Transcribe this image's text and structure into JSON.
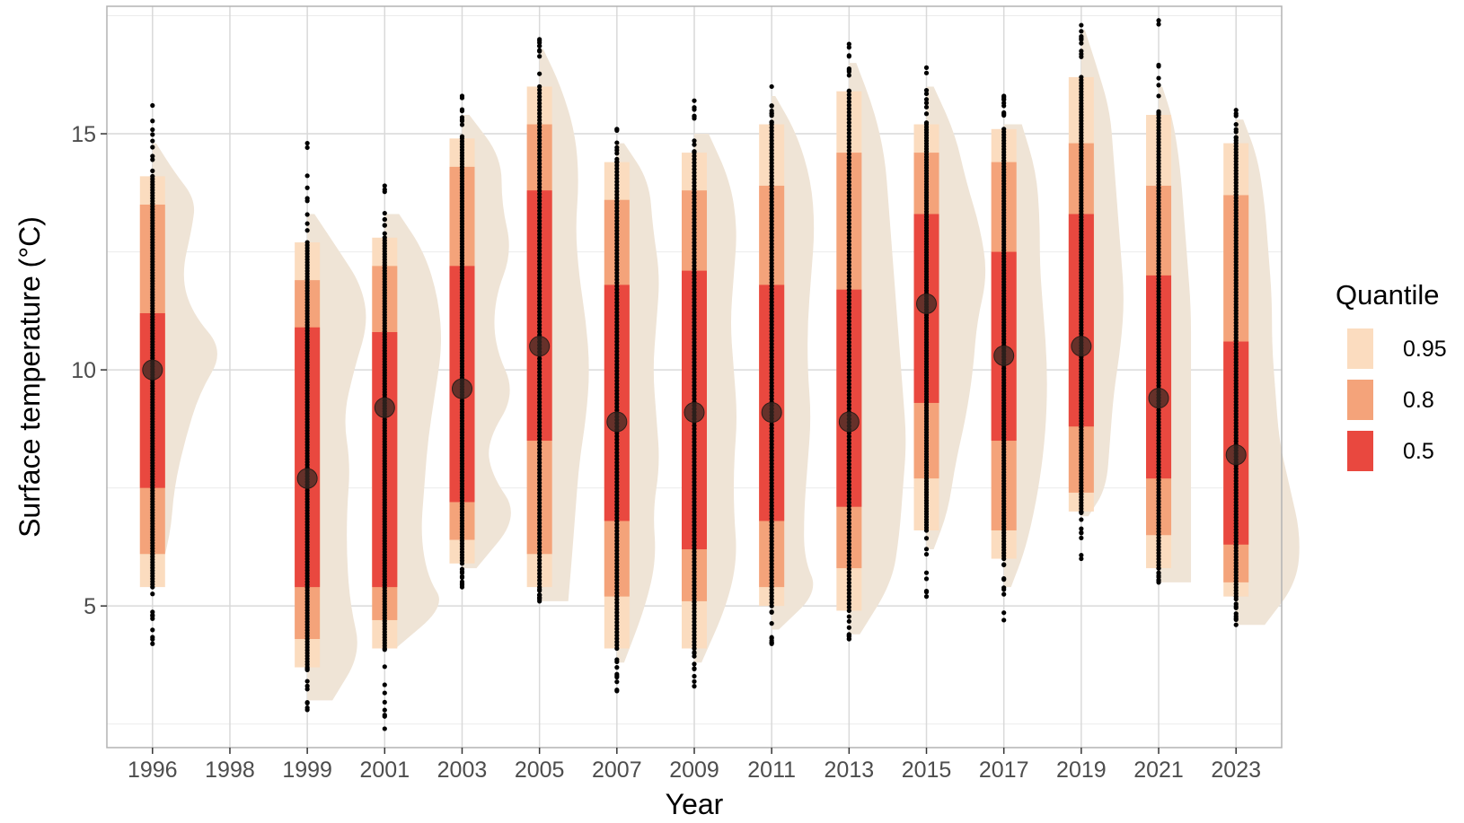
{
  "chart_data": {
    "type": "raincloud",
    "xlabel": "Year",
    "ylabel": "Surface temperature (°C)",
    "ylim": [
      2.0,
      17.7
    ],
    "y_ticks": [
      5,
      10,
      15
    ],
    "grid": true,
    "legend": {
      "title": "Quantile",
      "position": "right",
      "items": [
        {
          "label": "0.95",
          "color": "#fbdcbf"
        },
        {
          "label": "0.8",
          "color": "#f4a37a"
        },
        {
          "label": "0.5",
          "color": "#e9483f"
        }
      ]
    },
    "colors": {
      "density": "#efe4d6",
      "q95": "#fbdcbf",
      "q80": "#f4a37a",
      "q50": "#e9483f",
      "points": "#000000",
      "median": "#3a2a24"
    },
    "categories": [
      "1996",
      "1998",
      "1999",
      "2001",
      "2003",
      "2005",
      "2007",
      "2009",
      "2011",
      "2013",
      "2015",
      "2017",
      "2019",
      "2021",
      "2023"
    ],
    "series": [
      {
        "year": "1996",
        "median": 10.0,
        "q50": [
          7.5,
          11.2
        ],
        "q80": [
          6.1,
          13.5
        ],
        "q95": [
          5.4,
          14.1
        ],
        "min": 4.2,
        "max": 15.6,
        "density": [
          [
            5.4,
            0.05
          ],
          [
            6.5,
            0.25
          ],
          [
            7.5,
            0.3
          ],
          [
            8.5,
            0.45
          ],
          [
            9.5,
            0.65
          ],
          [
            10.4,
            1.0
          ],
          [
            11.2,
            0.55
          ],
          [
            12.0,
            0.4
          ],
          [
            13.0,
            0.55
          ],
          [
            13.6,
            0.6
          ],
          [
            14.2,
            0.3
          ],
          [
            14.8,
            0.05
          ]
        ]
      },
      {
        "year": "1998"
      },
      {
        "year": "1999",
        "median": 7.7,
        "q50": [
          5.4,
          10.9
        ],
        "q80": [
          4.3,
          11.9
        ],
        "q95": [
          3.7,
          12.7
        ],
        "min": 2.8,
        "max": 14.8,
        "density": [
          [
            3.0,
            0.35
          ],
          [
            4.0,
            0.75
          ],
          [
            5.0,
            0.6
          ],
          [
            6.0,
            0.55
          ],
          [
            7.0,
            0.55
          ],
          [
            8.0,
            0.6
          ],
          [
            9.0,
            0.5
          ],
          [
            10.0,
            0.65
          ],
          [
            11.0,
            0.85
          ],
          [
            11.8,
            0.75
          ],
          [
            12.5,
            0.45
          ],
          [
            13.3,
            0.1
          ]
        ]
      },
      {
        "year": "2001",
        "median": 9.2,
        "q50": [
          5.4,
          10.8
        ],
        "q80": [
          4.7,
          12.2
        ],
        "q95": [
          4.1,
          12.8
        ],
        "min": 2.4,
        "max": 13.9,
        "density": [
          [
            4.1,
            0.15
          ],
          [
            5.0,
            0.85
          ],
          [
            5.6,
            0.6
          ],
          [
            6.5,
            0.5
          ],
          [
            7.5,
            0.55
          ],
          [
            8.5,
            0.6
          ],
          [
            9.5,
            0.7
          ],
          [
            10.5,
            0.8
          ],
          [
            11.5,
            0.75
          ],
          [
            12.5,
            0.55
          ],
          [
            13.3,
            0.2
          ]
        ]
      },
      {
        "year": "2003",
        "median": 9.6,
        "q50": [
          7.2,
          12.2
        ],
        "q80": [
          6.4,
          14.3
        ],
        "q95": [
          5.9,
          14.9
        ],
        "min": 5.4,
        "max": 15.8,
        "density": [
          [
            5.8,
            0.2
          ],
          [
            6.9,
            0.8
          ],
          [
            7.8,
            0.4
          ],
          [
            8.5,
            0.35
          ],
          [
            9.5,
            0.75
          ],
          [
            10.5,
            0.45
          ],
          [
            11.5,
            0.45
          ],
          [
            12.5,
            0.7
          ],
          [
            13.5,
            0.55
          ],
          [
            14.5,
            0.55
          ],
          [
            15.4,
            0.1
          ]
        ]
      },
      {
        "year": "2005",
        "median": 10.5,
        "q50": [
          8.5,
          13.8
        ],
        "q80": [
          6.1,
          15.2
        ],
        "q95": [
          5.4,
          16.0
        ],
        "min": 5.1,
        "max": 17.0,
        "density": [
          [
            5.1,
            0.4
          ],
          [
            6.0,
            0.45
          ],
          [
            7.0,
            0.5
          ],
          [
            8.0,
            0.55
          ],
          [
            9.0,
            0.65
          ],
          [
            10.0,
            0.7
          ],
          [
            11.0,
            0.65
          ],
          [
            12.0,
            0.55
          ],
          [
            13.0,
            0.5
          ],
          [
            14.0,
            0.55
          ],
          [
            15.0,
            0.5
          ],
          [
            16.0,
            0.3
          ],
          [
            16.8,
            0.05
          ]
        ]
      },
      {
        "year": "2007",
        "median": 8.9,
        "q50": [
          6.8,
          11.8
        ],
        "q80": [
          5.2,
          13.6
        ],
        "q95": [
          4.1,
          14.4
        ],
        "min": 3.2,
        "max": 15.1,
        "density": [
          [
            3.8,
            0.1
          ],
          [
            5.0,
            0.4
          ],
          [
            6.0,
            0.55
          ],
          [
            7.0,
            0.5
          ],
          [
            8.0,
            0.6
          ],
          [
            9.0,
            0.55
          ],
          [
            10.0,
            0.5
          ],
          [
            11.0,
            0.55
          ],
          [
            12.0,
            0.6
          ],
          [
            13.0,
            0.5
          ],
          [
            14.0,
            0.45
          ],
          [
            14.8,
            0.1
          ]
        ]
      },
      {
        "year": "2009",
        "median": 9.1,
        "q50": [
          6.2,
          12.1
        ],
        "q80": [
          5.1,
          13.8
        ],
        "q95": [
          4.1,
          14.6
        ],
        "min": 3.3,
        "max": 15.7,
        "density": [
          [
            3.8,
            0.1
          ],
          [
            5.0,
            0.45
          ],
          [
            6.0,
            0.6
          ],
          [
            7.0,
            0.55
          ],
          [
            8.0,
            0.55
          ],
          [
            9.0,
            0.6
          ],
          [
            10.0,
            0.55
          ],
          [
            11.0,
            0.5
          ],
          [
            12.0,
            0.55
          ],
          [
            13.0,
            0.6
          ],
          [
            14.0,
            0.5
          ],
          [
            15.0,
            0.2
          ]
        ]
      },
      {
        "year": "2011",
        "median": 9.1,
        "q50": [
          6.8,
          11.8
        ],
        "q80": [
          5.4,
          13.9
        ],
        "q95": [
          5.0,
          15.2
        ],
        "min": 4.2,
        "max": 16.0,
        "density": [
          [
            4.5,
            0.1
          ],
          [
            5.3,
            0.65
          ],
          [
            6.0,
            0.45
          ],
          [
            7.0,
            0.45
          ],
          [
            8.0,
            0.5
          ],
          [
            9.0,
            0.55
          ],
          [
            10.0,
            0.5
          ],
          [
            11.0,
            0.5
          ],
          [
            12.0,
            0.55
          ],
          [
            13.0,
            0.6
          ],
          [
            14.0,
            0.55
          ],
          [
            15.0,
            0.35
          ],
          [
            15.8,
            0.05
          ]
        ]
      },
      {
        "year": "2013",
        "median": 8.9,
        "q50": [
          7.1,
          11.7
        ],
        "q80": [
          5.8,
          14.6
        ],
        "q95": [
          4.9,
          15.9
        ],
        "min": 4.3,
        "max": 16.9,
        "density": [
          [
            4.4,
            0.15
          ],
          [
            5.5,
            0.6
          ],
          [
            6.5,
            0.7
          ],
          [
            7.5,
            0.75
          ],
          [
            8.5,
            0.8
          ],
          [
            9.5,
            0.75
          ],
          [
            10.5,
            0.7
          ],
          [
            11.5,
            0.65
          ],
          [
            12.5,
            0.6
          ],
          [
            13.5,
            0.55
          ],
          [
            14.5,
            0.5
          ],
          [
            15.5,
            0.35
          ],
          [
            16.5,
            0.1
          ]
        ]
      },
      {
        "year": "2015",
        "median": 11.4,
        "q50": [
          9.3,
          13.3
        ],
        "q80": [
          7.7,
          14.6
        ],
        "q95": [
          6.6,
          15.2
        ],
        "min": 5.2,
        "max": 16.4,
        "density": [
          [
            6.2,
            0.1
          ],
          [
            7.0,
            0.3
          ],
          [
            8.0,
            0.4
          ],
          [
            9.0,
            0.55
          ],
          [
            10.0,
            0.65
          ],
          [
            11.0,
            0.7
          ],
          [
            12.0,
            0.85
          ],
          [
            13.0,
            0.75
          ],
          [
            14.0,
            0.55
          ],
          [
            15.0,
            0.4
          ],
          [
            16.0,
            0.1
          ]
        ]
      },
      {
        "year": "2017",
        "median": 10.3,
        "q50": [
          8.5,
          12.5
        ],
        "q80": [
          6.6,
          14.4
        ],
        "q95": [
          6.0,
          15.1
        ],
        "min": 4.7,
        "max": 15.8,
        "density": [
          [
            5.4,
            0.1
          ],
          [
            6.2,
            0.3
          ],
          [
            7.2,
            0.45
          ],
          [
            8.2,
            0.55
          ],
          [
            9.2,
            0.6
          ],
          [
            10.2,
            0.6
          ],
          [
            11.2,
            0.55
          ],
          [
            12.2,
            0.5
          ],
          [
            13.2,
            0.5
          ],
          [
            14.2,
            0.45
          ],
          [
            15.2,
            0.25
          ]
        ]
      },
      {
        "year": "2019",
        "median": 10.5,
        "q50": [
          8.8,
          13.3
        ],
        "q80": [
          7.4,
          14.8
        ],
        "q95": [
          7.0,
          16.2
        ],
        "min": 6.0,
        "max": 17.3,
        "density": [
          [
            6.9,
            0.1
          ],
          [
            7.5,
            0.35
          ],
          [
            8.5,
            0.4
          ],
          [
            9.5,
            0.45
          ],
          [
            10.5,
            0.55
          ],
          [
            11.5,
            0.6
          ],
          [
            12.5,
            0.55
          ],
          [
            13.5,
            0.5
          ],
          [
            14.5,
            0.45
          ],
          [
            15.5,
            0.4
          ],
          [
            16.5,
            0.2
          ],
          [
            17.2,
            0.05
          ]
        ]
      },
      {
        "year": "2021",
        "median": 9.4,
        "q50": [
          7.7,
          12.0
        ],
        "q80": [
          6.5,
          13.9
        ],
        "q95": [
          5.8,
          15.4
        ],
        "min": 5.5,
        "max": 17.4,
        "density": [
          [
            5.5,
            0.45
          ],
          [
            6.3,
            0.45
          ],
          [
            7.3,
            0.45
          ],
          [
            8.3,
            0.45
          ],
          [
            9.3,
            0.45
          ],
          [
            10.3,
            0.45
          ],
          [
            11.3,
            0.45
          ],
          [
            12.3,
            0.4
          ],
          [
            13.3,
            0.35
          ],
          [
            14.3,
            0.3
          ],
          [
            15.3,
            0.2
          ],
          [
            16.0,
            0.05
          ]
        ]
      },
      {
        "year": "2023",
        "median": 8.2,
        "q50": [
          6.3,
          10.6
        ],
        "q80": [
          5.5,
          13.7
        ],
        "q95": [
          5.2,
          14.8
        ],
        "min": 4.6,
        "max": 15.5,
        "density": [
          [
            4.6,
            0.4
          ],
          [
            5.5,
            0.85
          ],
          [
            6.5,
            0.9
          ],
          [
            7.5,
            0.75
          ],
          [
            8.5,
            0.6
          ],
          [
            9.5,
            0.55
          ],
          [
            10.5,
            0.5
          ],
          [
            11.5,
            0.5
          ],
          [
            12.5,
            0.45
          ],
          [
            13.5,
            0.4
          ],
          [
            14.5,
            0.3
          ],
          [
            15.3,
            0.1
          ]
        ]
      }
    ]
  }
}
